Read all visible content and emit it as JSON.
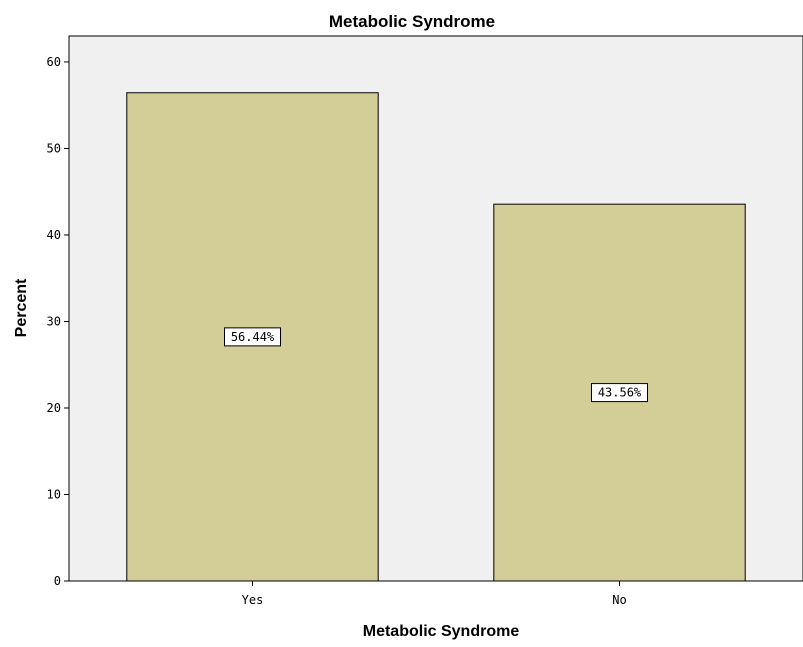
{
  "chart_data": {
    "type": "bar",
    "title": "Metabolic Syndrome",
    "xlabel": "Metabolic Syndrome",
    "ylabel": "Percent",
    "categories": [
      "Yes",
      "No"
    ],
    "values": [
      56.44,
      43.56
    ],
    "data_labels": [
      "56.44%",
      "43.56%"
    ],
    "ylim": [
      0,
      63
    ],
    "yticks": [
      0,
      10,
      20,
      30,
      40,
      50,
      60
    ],
    "grid": false,
    "legend": "none",
    "colors": {
      "bar_fill": "#d3cd97",
      "bar_stroke": "#000000",
      "plot_background": "#f0f0f0",
      "page_background": "#ffffff"
    }
  }
}
